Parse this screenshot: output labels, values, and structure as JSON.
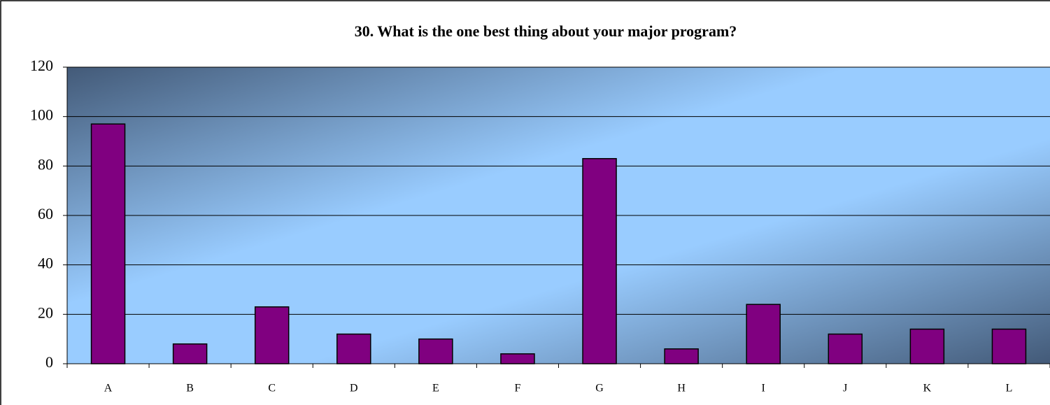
{
  "chart_data": {
    "type": "bar",
    "title": "30.  What is the one best thing about your major program?",
    "categories": [
      "A",
      "B",
      "C",
      "D",
      "E",
      "F",
      "G",
      "H",
      "I",
      "J",
      "K",
      "L"
    ],
    "values": [
      97,
      8,
      23,
      12,
      10,
      4,
      83,
      6,
      24,
      12,
      14,
      14
    ],
    "color": "#800080",
    "ylim": [
      0,
      120
    ],
    "yticks": [
      0,
      20,
      40,
      60,
      80,
      100,
      120
    ],
    "grid": true
  }
}
